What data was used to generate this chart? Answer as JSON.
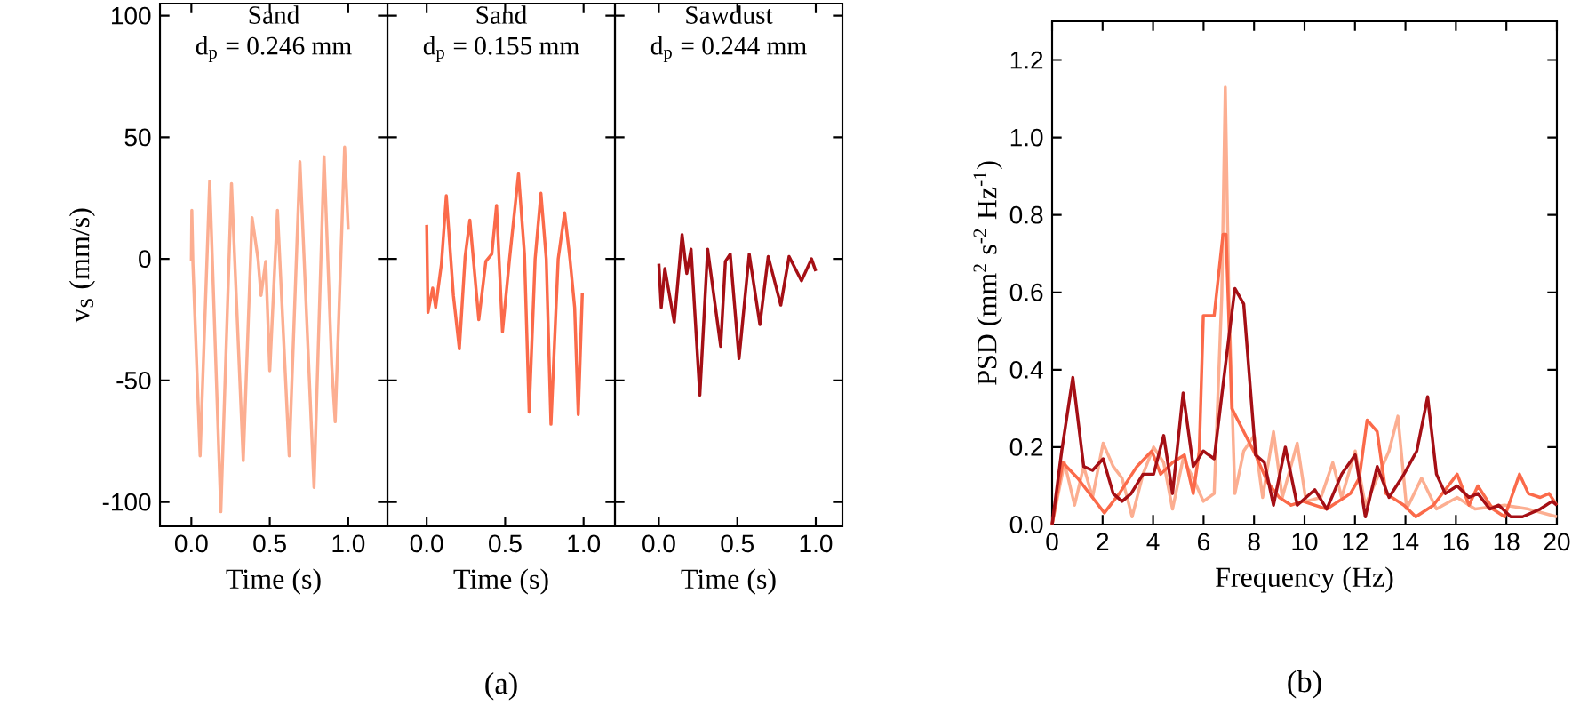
{
  "chart_data": [
    {
      "type": "line",
      "title": "Sand",
      "subtitle": "d$_{p}$ = 0.246 mm",
      "xlabel": "Time (s)",
      "ylabel": "v$_{S}$ (mm/s)",
      "color": "#fcae91",
      "x": [
        0,
        0.003,
        0.01,
        0.056,
        0.117,
        0.188,
        0.256,
        0.331,
        0.387,
        0.425,
        0.444,
        0.474,
        0.5,
        0.549,
        0.624,
        0.692,
        0.782,
        0.846,
        0.895,
        0.917,
        0.977,
        1.0
      ],
      "values": [
        -1,
        20,
        -2,
        -81,
        32,
        -104,
        31,
        -83,
        17,
        0,
        -15,
        -1,
        -46,
        20,
        -81,
        40,
        -94,
        42,
        -44,
        -67,
        46,
        12
      ],
      "xlim": [
        -0.2,
        1.25
      ],
      "ylim": [
        -110,
        105
      ],
      "xticks": [
        {
          "value": 0,
          "label": "0.0"
        },
        {
          "value": 0.5,
          "label": "0.5"
        },
        {
          "value": 1,
          "label": "1.0"
        }
      ],
      "yticks": [
        -100,
        -50,
        0,
        50,
        100
      ]
    },
    {
      "type": "line",
      "title": "Sand",
      "subtitle": "d$_{p}$ = 0.155 mm",
      "xlabel": "Time (s)",
      "color": "#fb6a4a",
      "x": [
        0,
        0.008,
        0.038,
        0.057,
        0.094,
        0.125,
        0.17,
        0.208,
        0.245,
        0.275,
        0.332,
        0.377,
        0.415,
        0.445,
        0.483,
        0.528,
        0.585,
        0.623,
        0.653,
        0.691,
        0.728,
        0.762,
        0.792,
        0.838,
        0.879,
        0.913,
        0.943,
        0.966,
        0.992
      ],
      "values": [
        14,
        -22,
        -12,
        -20,
        -2,
        26,
        -15,
        -37,
        1,
        16,
        -25,
        -1,
        2,
        22,
        -30,
        0,
        35,
        2,
        -63,
        0,
        27,
        0,
        -68,
        0,
        19,
        0,
        -20,
        -64,
        -14
      ],
      "xlim": [
        -0.25,
        1.2
      ],
      "ylim": [
        -110,
        105
      ],
      "xticks": [
        {
          "value": 0,
          "label": "0.0"
        },
        {
          "value": 0.5,
          "label": "0.5"
        },
        {
          "value": 1,
          "label": "1.0"
        }
      ],
      "yticks": [
        -100,
        -50,
        0,
        50,
        100
      ],
      "tick_labels": "x",
      "annotations": [
        "(a)"
      ]
    },
    {
      "type": "line",
      "title": "Sawdust",
      "subtitle": "d$_{p}$ = 0.244 mm",
      "xlabel": "Time (s)",
      "color": "#a50f15",
      "x": [
        0,
        0.015,
        0.038,
        0.098,
        0.148,
        0.178,
        0.205,
        0.261,
        0.311,
        0.394,
        0.424,
        0.455,
        0.511,
        0.576,
        0.644,
        0.697,
        0.777,
        0.83,
        0.909,
        0.973,
        1.0
      ],
      "values": [
        -2,
        -20,
        -4,
        -26,
        10,
        -6,
        4,
        -56,
        4,
        -36,
        -1,
        2,
        -41,
        2,
        -27,
        1,
        -19,
        1,
        -9,
        0,
        -5
      ],
      "xlim": [
        -0.28,
        1.17
      ],
      "ylim": [
        -110,
        105
      ],
      "xticks": [
        {
          "value": 0,
          "label": "0.0"
        },
        {
          "value": 0.5,
          "label": "0.5"
        },
        {
          "value": 1,
          "label": "1.0"
        }
      ],
      "yticks": [
        -100,
        -50,
        0,
        50,
        100
      ],
      "tick_labels": "x"
    },
    {
      "type": "line",
      "xlabel": "Frequency (Hz)",
      "ylabel": "PSD (mm$^{2}$ s$^{-2}$ Hz$^{-1}$)",
      "annotations": [
        "(b)"
      ],
      "series": [
        {
          "color": "#fcae91",
          "x": [
            0,
            0.49,
            0.89,
            1.25,
            1.6,
            2.02,
            2.42,
            2.77,
            3.17,
            3.6,
            4.02,
            4.42,
            4.77,
            5.19,
            5.59,
            5.99,
            6.42,
            6.72,
            6.86,
            7.0,
            7.24,
            7.59,
            8.01,
            8.34,
            8.77,
            9.12,
            9.71,
            10.06,
            10.65,
            11.12,
            11.47,
            12.01,
            12.41,
            13.35,
            13.7,
            14.05,
            14.64,
            15.23,
            16.05,
            16.76,
            17.93,
            18.87,
            20
          ],
          "values": [
            0,
            0.16,
            0.05,
            0.15,
            0.07,
            0.21,
            0.15,
            0.12,
            0.02,
            0.13,
            0.2,
            0.16,
            0.04,
            0.17,
            0.12,
            0.06,
            0.08,
            0.59,
            1.13,
            0.59,
            0.08,
            0.19,
            0.23,
            0.07,
            0.24,
            0.07,
            0.21,
            0.06,
            0.07,
            0.16,
            0.07,
            0.19,
            0.05,
            0.19,
            0.28,
            0.04,
            0.12,
            0.04,
            0.07,
            0.04,
            0.05,
            0.04,
            0.02
          ]
        },
        {
          "color": "#fb6a4a",
          "x": [
            0,
            0.42,
            1.01,
            1.6,
            2.07,
            2.66,
            3.36,
            3.95,
            4.3,
            4.77,
            5.24,
            5.59,
            5.83,
            5.99,
            6.42,
            6.77,
            6.89,
            7.12,
            7.59,
            8.06,
            8.53,
            9.0,
            9.47,
            9.94,
            10.88,
            11.82,
            12.17,
            12.48,
            12.88,
            13.23,
            13.94,
            14.41,
            15.11,
            16.05,
            16.52,
            16.87,
            17.46,
            17.93,
            18.52,
            18.87,
            19.34,
            19.69,
            20
          ],
          "values": [
            0,
            0.16,
            0.12,
            0.07,
            0.03,
            0.08,
            0.15,
            0.19,
            0.13,
            0.16,
            0.18,
            0.08,
            0.19,
            0.54,
            0.54,
            0.75,
            0.75,
            0.3,
            0.24,
            0.18,
            0.11,
            0.07,
            0.05,
            0.06,
            0.04,
            0.08,
            0.12,
            0.27,
            0.24,
            0.08,
            0.05,
            0.02,
            0.05,
            0.13,
            0.05,
            0.1,
            0.04,
            0.02,
            0.13,
            0.08,
            0.07,
            0.08,
            0.05
          ]
        },
        {
          "color": "#a50f15",
          "x": [
            0,
            0.38,
            0.82,
            1.25,
            1.6,
            2.02,
            2.42,
            2.77,
            3.13,
            3.6,
            4.02,
            4.42,
            4.77,
            5.19,
            5.59,
            5.99,
            6.42,
            6.77,
            7.24,
            7.59,
            8.06,
            8.41,
            8.77,
            9.24,
            9.71,
            10.41,
            10.88,
            11.47,
            12.01,
            12.41,
            12.88,
            13.35,
            13.94,
            14.45,
            14.88,
            15.23,
            15.58,
            16.05,
            16.52,
            16.87,
            17.34,
            17.7,
            18.17,
            18.64,
            19.34,
            19.81,
            20
          ],
          "values": [
            0,
            0.19,
            0.38,
            0.15,
            0.14,
            0.17,
            0.08,
            0.06,
            0.08,
            0.13,
            0.13,
            0.23,
            0.08,
            0.34,
            0.15,
            0.19,
            0.17,
            0.36,
            0.61,
            0.57,
            0.18,
            0.16,
            0.05,
            0.2,
            0.05,
            0.09,
            0.04,
            0.13,
            0.18,
            0.02,
            0.15,
            0.07,
            0.13,
            0.19,
            0.33,
            0.13,
            0.08,
            0.1,
            0.07,
            0.08,
            0.04,
            0.05,
            0.02,
            0.02,
            0.04,
            0.06,
            0.05
          ]
        }
      ],
      "xlim": [
        0,
        20
      ],
      "ylim": [
        0,
        1.3
      ],
      "xticks": [
        0,
        2,
        4,
        6,
        8,
        10,
        12,
        14,
        16,
        18,
        20
      ],
      "yticks": [
        {
          "value": 0,
          "label": "0.0"
        },
        {
          "value": 0.2,
          "label": "0.2"
        },
        {
          "value": 0.4,
          "label": "0.4"
        },
        {
          "value": 0.6,
          "label": "0.6"
        },
        {
          "value": 0.8,
          "label": "0.8"
        },
        {
          "value": 1.0,
          "label": "1.0"
        },
        {
          "value": 1.2,
          "label": "1.2"
        }
      ]
    }
  ]
}
